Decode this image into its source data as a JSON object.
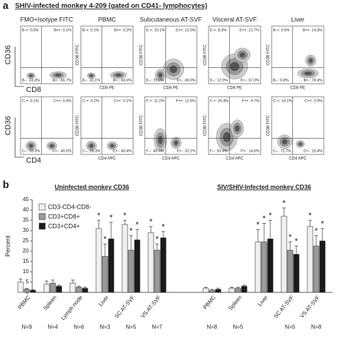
{
  "panel_a": {
    "letter": "a",
    "title": "SHIV-infected monkey 4-209  (gated on CD41- lymphocytes)",
    "columns": [
      "FMO+Isotype FITC",
      "PBMC",
      "Subcutaneous AT-SVF",
      "Visceral AT-SVF",
      "Liver"
    ],
    "rows": [
      {
        "y_label_main": "CD36",
        "x_label_main": "CD8",
        "y_label": "CD36 FITC",
        "x_label": "CD8 PE",
        "plots": [
          [
            "B-+: 0.0%",
            "B++: 0.1%",
            "B--: 33.3%",
            "B+-: 66.7%"
          ],
          [
            "B-+: 0.1%",
            "B++: 0.2%",
            "B--: 33.1%",
            "B+-: 66.6%"
          ],
          [
            "E-+: 10.1%",
            "E++: 12.0%",
            "E--: 29.0%",
            "E+-: 49.0%"
          ],
          [
            "E-+: 8.3%",
            "E++: 21.7%",
            "E--: 12.9%",
            "E+-: 57.0%"
          ],
          [
            "B-+: 0.5%",
            "B++: 14.3%",
            "B--: 6.8%",
            "B+-: 78.4%"
          ]
        ]
      },
      {
        "y_label_main": "CD36",
        "x_label_main": "CD4",
        "y_label": "CD36 FITC",
        "x_label": "CD4 APC",
        "plots": [
          [
            "C-+: 0.1%",
            "C++: 0.0%",
            "C--: 59.3%",
            "C+-: 40.5%"
          ],
          [
            "C-+: 0.2%",
            "C++: 0.1%",
            "C--: 59.3%",
            "C+-: 40.4%"
          ],
          [
            "F-+: 11.2%",
            "F++: 12.9%",
            "F--: 43.7%",
            "F+-: 32.1%"
          ],
          [
            "F-+: 20.4%",
            "F++: 9.7%",
            "F--: 55.4%",
            "F+-: 14.6%"
          ],
          [
            "C-+: 14.1%",
            "C++: 2.9%",
            "C--: 72.7%",
            "C+-: 10.4%"
          ]
        ]
      }
    ]
  },
  "panel_b_letter": "b",
  "chart_data": [
    {
      "type": "bar",
      "title": "Uninfected monkey CD36",
      "y_label": "Percent",
      "categories": [
        "PBMC",
        "Spleen",
        "Lymph node",
        "Liver",
        "SC AT-SVF",
        "VS AT-SVF"
      ],
      "n_labels": [
        "N=9",
        "N=4",
        "N=6",
        "N=3",
        "N=5",
        "N=7"
      ],
      "ylim": [
        0,
        45
      ],
      "yticks": [
        0,
        5,
        10,
        15,
        20,
        25,
        30,
        35,
        40,
        45
      ],
      "legend": "upper left",
      "series": [
        {
          "name": "CD3-CD4-CD8-",
          "color": "#f0f0f0",
          "values": [
            5,
            4,
            4.5,
            31,
            33,
            29
          ],
          "errors": [
            1.5,
            1.5,
            1.5,
            4,
            2,
            3
          ],
          "stars": [
            null,
            null,
            null,
            "*",
            "*",
            "*"
          ]
        },
        {
          "name": "CD3+CD8+",
          "color": "#9a9a9a",
          "values": [
            1.5,
            4.5,
            2.5,
            17.5,
            20.5,
            20.5
          ],
          "errors": [
            0.3,
            1.5,
            0.5,
            6,
            7,
            3
          ],
          "stars": [
            null,
            null,
            null,
            "*",
            "*",
            "*"
          ]
        },
        {
          "name": "CD3+CD4+",
          "color": "#1a1a1a",
          "values": [
            1,
            3,
            2,
            26,
            25.5,
            26.5
          ],
          "errors": [
            0.3,
            0.5,
            0.5,
            8,
            5,
            3
          ],
          "stars": [
            null,
            null,
            null,
            "*",
            "*",
            "*"
          ]
        }
      ]
    },
    {
      "type": "bar",
      "title": "SIV/SHIV-Infected monkey CD36",
      "categories": [
        "PBMC",
        "Spleen",
        "Liver",
        "SC AT-SVF",
        "VS AT-SVF"
      ],
      "n_labels": [
        "N=8",
        "N=5",
        null,
        "N=5",
        "N=8"
      ],
      "ylim": [
        0,
        45
      ],
      "series": [
        {
          "name": "CD3-CD4-CD8-",
          "color": "#f0f0f0",
          "values": [
            2,
            2,
            24.5,
            37,
            32
          ],
          "errors": [
            0.5,
            0.5,
            6,
            4,
            3
          ],
          "stars": [
            null,
            null,
            "*",
            "*",
            "*"
          ]
        },
        {
          "name": "CD3+CD8+",
          "color": "#9a9a9a",
          "values": [
            1,
            2,
            24.5,
            20.5,
            22.5
          ],
          "errors": [
            0.5,
            0.5,
            9,
            4,
            5
          ],
          "stars": [
            null,
            null,
            "*",
            "*",
            "*"
          ]
        },
        {
          "name": "CD3+CD4+",
          "color": "#1a1a1a",
          "values": [
            1.5,
            3,
            26,
            18.5,
            25
          ],
          "errors": [
            0.5,
            0.5,
            9,
            4,
            6
          ],
          "stars": [
            null,
            null,
            "*",
            "*",
            "*"
          ]
        }
      ]
    }
  ]
}
